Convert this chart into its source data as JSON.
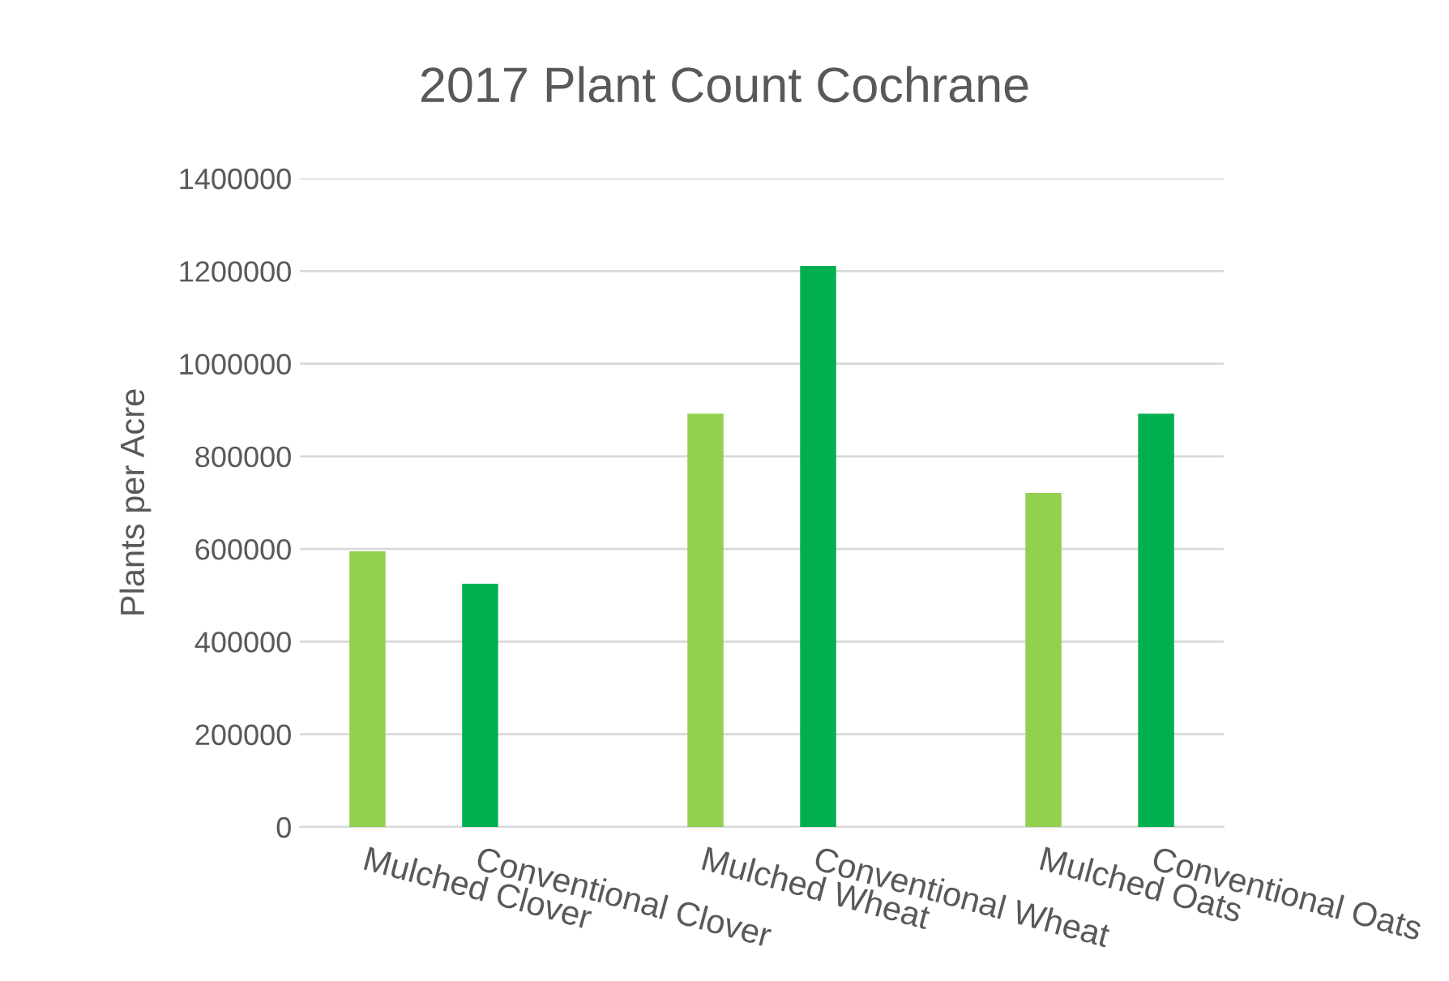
{
  "chart_data": {
    "type": "bar",
    "title": "2017 Plant Count Cochrane",
    "ylabel": "Plants per Acre",
    "categories": [
      "Mulched Clover",
      "Conventional Clover",
      null,
      "Mulched Wheat",
      "Conventional Wheat",
      null,
      "Mulched Oats",
      "Conventional Oats"
    ],
    "values": [
      595000,
      525000,
      null,
      892000,
      1211000,
      null,
      721000,
      892000
    ],
    "colors": [
      "#92d050",
      "#00b050",
      "#92d050",
      "#92d050",
      "#00b050",
      "#92d050",
      "#92d050",
      "#00b050"
    ],
    "ylim": [
      0,
      1400000
    ],
    "yticks": [
      0,
      200000,
      400000,
      600000,
      800000,
      1000000,
      1200000,
      1400000
    ],
    "grid": "y",
    "legend": false
  }
}
